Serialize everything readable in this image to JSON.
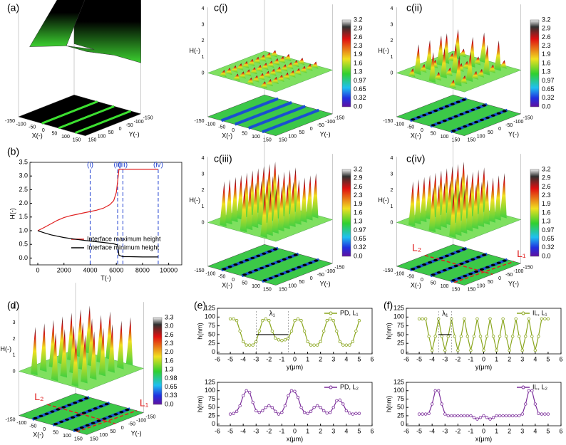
{
  "panels": {
    "a": "(a)",
    "b": "(b)",
    "ci": "c(i)",
    "cii": "c(ii)",
    "ciii": "c(iii)",
    "civ": "c(iv)",
    "d": "(d)",
    "e": "(e)",
    "f": "(f)"
  },
  "surface_axes": {
    "x_label": "X(-)",
    "y_label": "Y(-)",
    "h_label": "H(-)",
    "xy_ticks": [
      "-150",
      "-100",
      "-50",
      "0",
      "50",
      "100",
      "150"
    ],
    "h_ticks": [
      "0",
      "1",
      "2",
      "3",
      "4"
    ]
  },
  "colorbar_c": [
    "3.2",
    "2.9",
    "2.6",
    "2.3",
    "1.9",
    "1.6",
    "1.3",
    "0.97",
    "0.65",
    "0.32",
    "0.0"
  ],
  "colorbar_d": [
    "3.3",
    "3.0",
    "2.6",
    "2.3",
    "2.0",
    "1.6",
    "1.3",
    "0.98",
    "0.65",
    "0.33",
    "0.0"
  ],
  "line_labels": [
    "L₁",
    "L₂"
  ],
  "chart_data": [
    {
      "type": "line",
      "x_label": "T(-)",
      "y_label": "H(-)",
      "xlim": [
        -600,
        11000
      ],
      "ylim": [
        -0.25,
        3.5
      ],
      "xticks": [
        0,
        2000,
        4000,
        6000,
        8000,
        10000
      ],
      "yticks": [
        {
          "value": 0,
          "label": "0.0"
        },
        {
          "value": 0.5,
          "label": "0.5"
        },
        {
          "value": 1,
          "label": "1.0"
        },
        {
          "value": 1.5,
          "label": "1.5"
        },
        {
          "value": 2,
          "label": "2.0"
        },
        {
          "value": 2.5,
          "label": "2.5"
        },
        {
          "value": 3,
          "label": "3.0"
        },
        {
          "value": 3.5,
          "label": "3.5"
        }
      ],
      "vlines": [
        {
          "label": "(i)",
          "value": 4000
        },
        {
          "label": "(ii)",
          "value": 6100
        },
        {
          "label": "(iii)",
          "value": 6500
        },
        {
          "label": "(iv)",
          "value": 9200
        }
      ],
      "series": [
        {
          "name": "Interface maximum height",
          "color": "#e02020",
          "x": [
            0,
            500,
            1000,
            1500,
            2000,
            2500,
            3000,
            3500,
            4000,
            4500,
            5000,
            5500,
            5800,
            6000,
            6100,
            6200,
            6500,
            7000,
            8000,
            9200
          ],
          "values": [
            1.0,
            1.12,
            1.25,
            1.38,
            1.48,
            1.55,
            1.6,
            1.65,
            1.7,
            1.75,
            1.82,
            1.95,
            2.1,
            2.4,
            2.8,
            3.25,
            3.25,
            3.25,
            3.25,
            3.25
          ]
        },
        {
          "name": "Interface minimum height",
          "color": "#000000",
          "x": [
            0,
            500,
            1000,
            2000,
            3000,
            4000,
            5000,
            5800,
            6100,
            6200,
            6500,
            7000,
            8000,
            9200
          ],
          "values": [
            1.0,
            0.92,
            0.85,
            0.75,
            0.68,
            0.62,
            0.57,
            0.52,
            0.48,
            0.1,
            0.05,
            0.05,
            0.04,
            0.04
          ]
        }
      ]
    },
    {
      "type": "line",
      "x_label": "y(μm)",
      "y_label": "h(nm)",
      "annotation": "λ₁",
      "xlim": [
        -6,
        6
      ],
      "ylim": [
        -5,
        125
      ],
      "xticks": [
        -6,
        -5,
        -4,
        -3,
        -2,
        -1,
        0,
        1,
        2,
        3,
        4,
        5,
        6
      ],
      "yticks": [
        0,
        25,
        50,
        75,
        100,
        125
      ],
      "x": [
        -5,
        -4.75,
        -4.5,
        -4.25,
        -4,
        -3.75,
        -3.5,
        -3.25,
        -3,
        -2.75,
        -2.5,
        -2.25,
        -2,
        -1.75,
        -1.5,
        -1.25,
        -1,
        -0.75,
        -0.5,
        -0.25,
        0,
        0.25,
        0.5,
        0.75,
        1,
        1.25,
        1.5,
        1.75,
        2,
        2.25,
        2.5,
        2.75,
        3,
        3.25,
        3.5,
        3.75,
        4,
        4.25,
        4.5,
        4.75,
        5
      ],
      "series": [
        {
          "name": "PD, L₁",
          "color": "#8aa61e",
          "values": [
            95,
            95,
            90,
            60,
            30,
            20,
            20,
            20,
            30,
            60,
            90,
            95,
            90,
            60,
            40,
            35,
            33,
            35,
            40,
            60,
            90,
            95,
            90,
            60,
            30,
            20,
            20,
            20,
            30,
            60,
            90,
            95,
            90,
            60,
            30,
            20,
            20,
            20,
            30,
            60,
            90
          ]
        }
      ]
    },
    {
      "type": "line",
      "x_label": "x(μm)",
      "y_label": "h(nm)",
      "xlim": [
        -6,
        6
      ],
      "ylim": [
        -5,
        125
      ],
      "xticks": [
        -6,
        -5,
        -4,
        -3,
        -2,
        -1,
        0,
        1,
        2,
        3,
        4,
        5,
        6
      ],
      "yticks": [
        0,
        25,
        50,
        75,
        100,
        125
      ],
      "x": [
        -5,
        -4.75,
        -4.5,
        -4.25,
        -4,
        -3.75,
        -3.5,
        -3.25,
        -3,
        -2.75,
        -2.5,
        -2.25,
        -2,
        -1.75,
        -1.5,
        -1.25,
        -1,
        -0.75,
        -0.5,
        -0.25,
        0,
        0.25,
        0.5,
        0.75,
        1,
        1.25,
        1.5,
        1.75,
        2,
        2.25,
        2.5,
        2.75,
        3,
        3.25,
        3.5,
        3.75,
        4,
        4.25,
        4.5,
        4.75,
        5
      ],
      "series": [
        {
          "name": "PD, L₂",
          "color": "#7b2d9a",
          "values": [
            30,
            32,
            38,
            55,
            85,
            100,
            95,
            65,
            40,
            35,
            40,
            50,
            55,
            50,
            38,
            30,
            35,
            55,
            85,
            100,
            98,
            80,
            50,
            35,
            32,
            38,
            50,
            55,
            50,
            40,
            33,
            35,
            50,
            70,
            72,
            60,
            40,
            33,
            30,
            32,
            32
          ]
        }
      ]
    },
    {
      "type": "line",
      "x_label": "y(μm)",
      "y_label": "h(nm)",
      "annotation": "λ₁",
      "xlim": [
        -6,
        6
      ],
      "ylim": [
        -5,
        125
      ],
      "xticks": [
        -6,
        -5,
        -4,
        -3,
        -2,
        -1,
        0,
        1,
        2,
        3,
        4,
        5,
        6
      ],
      "yticks": [
        0,
        25,
        50,
        75,
        100,
        125
      ],
      "x": [
        -5,
        -4.75,
        -4.5,
        -4.25,
        -4,
        -3.75,
        -3.5,
        -3.25,
        -3,
        -2.75,
        -2.5,
        -2.25,
        -2,
        -1.75,
        -1.5,
        -1.25,
        -1,
        -0.75,
        -0.5,
        -0.25,
        0,
        0.25,
        0.5,
        0.75,
        1,
        1.25,
        1.5,
        1.75,
        2,
        2.25,
        2.5,
        2.75,
        3,
        3.25,
        3.5,
        3.75,
        4,
        4.25,
        4.5,
        4.75,
        5
      ],
      "series": [
        {
          "name": "IL, L₁",
          "color": "#8aa61e",
          "values": [
            95,
            95,
            95,
            45,
            5,
            45,
            95,
            45,
            5,
            45,
            95,
            45,
            5,
            45,
            95,
            45,
            5,
            45,
            95,
            45,
            5,
            45,
            95,
            45,
            5,
            45,
            95,
            45,
            5,
            45,
            95,
            45,
            5,
            45,
            95,
            45,
            5,
            45,
            95,
            95,
            95
          ]
        }
      ]
    },
    {
      "type": "line",
      "x_label": "x(μm)",
      "y_label": "h(nm)",
      "xlim": [
        -6,
        6
      ],
      "ylim": [
        -5,
        125
      ],
      "xticks": [
        -6,
        -5,
        -4,
        -3,
        -2,
        -1,
        0,
        1,
        2,
        3,
        4,
        5,
        6
      ],
      "yticks": [
        0,
        25,
        50,
        75,
        100,
        125
      ],
      "x": [
        -5,
        -4.75,
        -4.5,
        -4.25,
        -4,
        -3.75,
        -3.5,
        -3.25,
        -3,
        -2.75,
        -2.5,
        -2.25,
        -2,
        -1.75,
        -1.5,
        -1.25,
        -1,
        -0.75,
        -0.5,
        -0.25,
        0,
        0.25,
        0.5,
        0.75,
        1,
        1.25,
        1.5,
        1.75,
        2,
        2.25,
        2.5,
        2.75,
        3,
        3.25,
        3.5,
        3.75,
        4,
        4.25,
        4.5,
        4.75,
        5
      ],
      "series": [
        {
          "name": "IL, L₂",
          "color": "#7b2d9a",
          "values": [
            30,
            30,
            30,
            32,
            60,
            100,
            100,
            60,
            30,
            25,
            25,
            25,
            25,
            25,
            25,
            25,
            25,
            20,
            15,
            20,
            25,
            20,
            15,
            20,
            25,
            25,
            25,
            25,
            25,
            25,
            25,
            25,
            30,
            60,
            100,
            100,
            60,
            32,
            30,
            30,
            30
          ]
        }
      ]
    }
  ]
}
